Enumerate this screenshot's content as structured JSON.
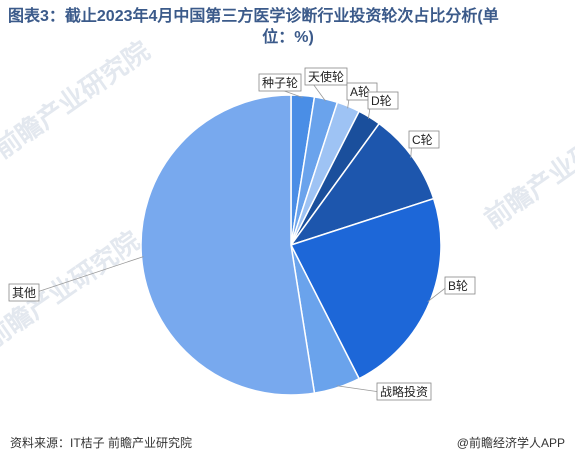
{
  "title_line1": "图表3：截止2023年4月中国第三方医学诊断行业投资轮次占比分析(单",
  "title_line2": "位：%)",
  "source": "资料来源：IT桔子 前瞻产业研究院",
  "brand": "@前瞻经济学人APP",
  "watermarks": [
    "前瞻产业研究院",
    "前瞻产业",
    "前瞻产业研究院",
    "前瞻产业研究院",
    "前瞻产业"
  ],
  "chart_data": {
    "type": "pie",
    "start_angle_deg": 0,
    "slices": [
      {
        "label": "种子轮",
        "value": 2.5,
        "color": "#4a8ee6"
      },
      {
        "label": "天使轮",
        "value": 2.5,
        "color": "#6aa3ec"
      },
      {
        "label": "A轮",
        "value": 2.5,
        "color": "#9ec3f4"
      },
      {
        "label": "D轮",
        "value": 2.5,
        "color": "#1a4f9c"
      },
      {
        "label": "C轮",
        "value": 10.0,
        "color": "#1d56ad"
      },
      {
        "label": "B轮",
        "value": 22.5,
        "color": "#1d67d8"
      },
      {
        "label": "战略投资",
        "value": 5.0,
        "color": "#6aa3ec"
      },
      {
        "label": "其他",
        "value": 52.5,
        "color": "#78a9ee"
      }
    ]
  }
}
